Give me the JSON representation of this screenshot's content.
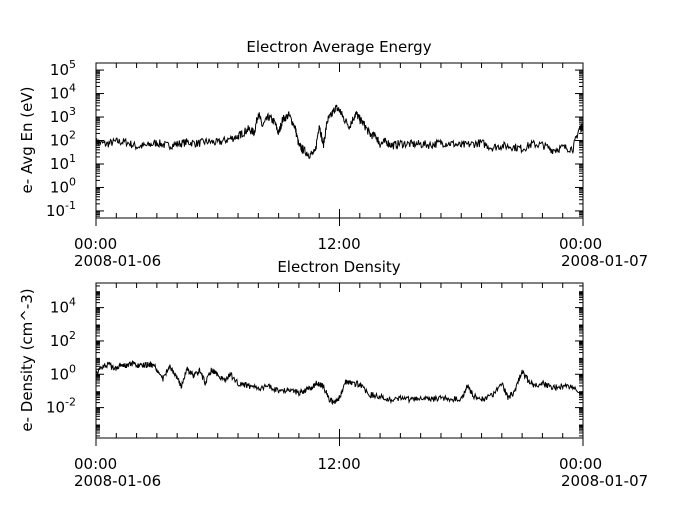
{
  "chart_data": [
    {
      "type": "line",
      "title": "Electron Average Energy",
      "xlabel": "",
      "ylabel": "e- Avg En (eV)",
      "y_scale": "log",
      "ylim": [
        0.05,
        200000
      ],
      "y_ticks": [
        {
          "base": "10",
          "exp": "-1",
          "value": 0.1
        },
        {
          "base": "10",
          "exp": "0",
          "value": 1
        },
        {
          "base": "10",
          "exp": "1",
          "value": 10
        },
        {
          "base": "10",
          "exp": "2",
          "value": 100
        },
        {
          "base": "10",
          "exp": "3",
          "value": 1000
        },
        {
          "base": "10",
          "exp": "4",
          "value": 10000
        },
        {
          "base": "10",
          "exp": "5",
          "value": 100000
        }
      ],
      "x_range_hours": [
        0,
        24
      ],
      "x_ticks": [
        {
          "hour": 0,
          "time": "00:00",
          "date": "2008-01-06"
        },
        {
          "hour": 12,
          "time": "12:00",
          "date": ""
        },
        {
          "hour": 24,
          "time": "00:00",
          "date": "2008-01-07"
        }
      ],
      "grid": false,
      "series": [
        {
          "x": [
            0,
            0.5,
            1,
            1.5,
            2,
            2.5,
            3,
            3.5,
            4,
            4.5,
            5,
            5.5,
            6,
            6.5,
            7,
            7.2,
            7.5,
            7.8,
            8,
            8.2,
            8.5,
            8.8,
            9,
            9.2,
            9.5,
            9.8,
            10,
            10.2,
            10.5,
            10.8,
            11,
            11.2,
            11.4,
            11.6,
            11.8,
            12,
            12.2,
            12.5,
            12.8,
            13,
            13.2,
            13.5,
            13.8,
            14,
            14.3,
            14.6,
            15,
            15.5,
            16,
            16.5,
            17,
            17.5,
            18,
            18.5,
            19,
            19.5,
            20,
            20.5,
            21,
            21.5,
            22,
            22.5,
            23,
            23.5,
            23.8,
            24
          ],
          "y": [
            90,
            70,
            90,
            85,
            55,
            60,
            80,
            60,
            70,
            85,
            75,
            90,
            80,
            110,
            150,
            200,
            300,
            220,
            1500,
            400,
            1000,
            600,
            200,
            800,
            1200,
            400,
            60,
            40,
            25,
            30,
            500,
            60,
            700,
            1200,
            2500,
            2000,
            900,
            400,
            1500,
            800,
            500,
            180,
            150,
            70,
            90,
            60,
            75,
            70,
            70,
            65,
            80,
            75,
            60,
            70,
            80,
            50,
            60,
            55,
            45,
            70,
            65,
            40,
            50,
            45,
            300,
            400
          ]
        }
      ]
    },
    {
      "type": "line",
      "title": "Electron Density",
      "xlabel": "",
      "ylabel": "e- Density (cm^-3)",
      "y_scale": "log",
      "ylim": [
        0.00015,
        300000
      ],
      "y_ticks": [
        {
          "base": "10",
          "exp": "-2",
          "value": 0.01
        },
        {
          "base": "10",
          "exp": "0",
          "value": 1
        },
        {
          "base": "10",
          "exp": "2",
          "value": 100
        },
        {
          "base": "10",
          "exp": "4",
          "value": 10000
        }
      ],
      "x_range_hours": [
        0,
        24
      ],
      "x_ticks": [
        {
          "hour": 0,
          "time": "00:00",
          "date": "2008-01-06"
        },
        {
          "hour": 12,
          "time": "12:00",
          "date": ""
        },
        {
          "hour": 24,
          "time": "00:00",
          "date": "2008-01-07"
        }
      ],
      "grid": false,
      "series": [
        {
          "x": [
            0,
            0.3,
            0.6,
            0.9,
            1.2,
            1.5,
            1.8,
            2.1,
            2.4,
            2.7,
            3,
            3.3,
            3.6,
            3.9,
            4.2,
            4.5,
            4.8,
            5.1,
            5.4,
            5.7,
            6,
            6.3,
            6.6,
            7,
            7.5,
            8,
            8.5,
            9,
            9.5,
            10,
            10.3,
            10.6,
            10.9,
            11.2,
            11.5,
            11.8,
            12,
            12.3,
            12.6,
            13,
            13.5,
            14,
            14.5,
            15,
            15.5,
            16,
            16.5,
            17,
            17.5,
            18,
            18.3,
            18.6,
            19,
            19.5,
            20,
            20.3,
            20.6,
            21,
            21.3,
            21.6,
            22,
            22.5,
            23,
            23.5,
            24
          ],
          "y": [
            1,
            3,
            4,
            2,
            4,
            3.5,
            4,
            3,
            3.5,
            4,
            2,
            0.5,
            3,
            1,
            0.2,
            2,
            0.8,
            1.5,
            0.3,
            2,
            1,
            0.4,
            1,
            0.3,
            0.2,
            0.15,
            0.2,
            0.1,
            0.12,
            0.08,
            0.1,
            0.15,
            0.3,
            0.2,
            0.03,
            0.02,
            0.04,
            0.35,
            0.3,
            0.25,
            0.06,
            0.05,
            0.03,
            0.04,
            0.03,
            0.035,
            0.03,
            0.04,
            0.035,
            0.03,
            0.2,
            0.05,
            0.03,
            0.05,
            0.3,
            0.04,
            0.08,
            1.5,
            0.4,
            0.2,
            0.3,
            0.15,
            0.2,
            0.15,
            0.08
          ]
        }
      ]
    }
  ]
}
